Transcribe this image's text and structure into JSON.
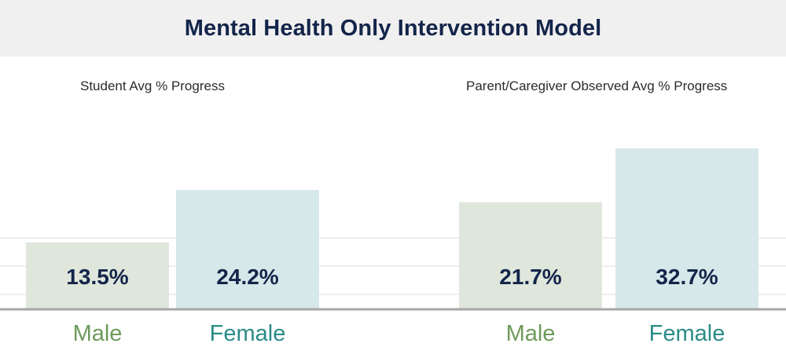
{
  "title": "Mental Health Only Intervention Model",
  "colors": {
    "male_bar": "#dfe6db",
    "female_bar": "#d6e8ea",
    "male_label": "#6e9a5c",
    "female_label": "#2a8b86",
    "value_text": "#14254a"
  },
  "chart_data": [
    {
      "type": "bar",
      "title": "Student Avg % Progress",
      "categories": [
        "Male",
        "Female"
      ],
      "values": [
        13.5,
        24.2
      ],
      "value_labels": [
        "13.5%",
        "24.2%"
      ]
    },
    {
      "type": "bar",
      "title": "Parent/Caregiver Observed Avg % Progress",
      "categories": [
        "Male",
        "Female"
      ],
      "values": [
        21.7,
        32.7
      ],
      "value_labels": [
        "21.7%",
        "32.7%"
      ]
    }
  ]
}
